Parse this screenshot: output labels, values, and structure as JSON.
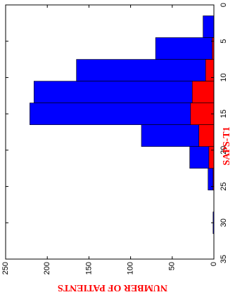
{
  "chart_data": {
    "type": "bar",
    "orientation": "rotated-90-clockwise",
    "xlabel": "SAPS-T1",
    "ylabel": "NUMBER OF PATIENTS",
    "xlim": [
      0,
      35
    ],
    "ylim": [
      0,
      250
    ],
    "x_ticks": [
      0,
      5,
      10,
      15,
      20,
      25,
      30,
      35
    ],
    "y_ticks": [
      0,
      50,
      100,
      150,
      200,
      250
    ],
    "bin_edges": [
      1.5,
      4.5,
      7.5,
      10.5,
      13.5,
      16.5,
      19.5,
      22.5,
      25.5,
      28.5,
      31.5
    ],
    "series": [
      {
        "color": "#0000ff",
        "values": [
          13,
          70,
          165,
          216,
          221,
          87,
          29,
          7,
          0,
          1
        ]
      },
      {
        "color": "#ff0000",
        "values": [
          0,
          2,
          10,
          26,
          28,
          18,
          6,
          1,
          0,
          0
        ]
      }
    ],
    "grid": false,
    "legend": "none"
  }
}
